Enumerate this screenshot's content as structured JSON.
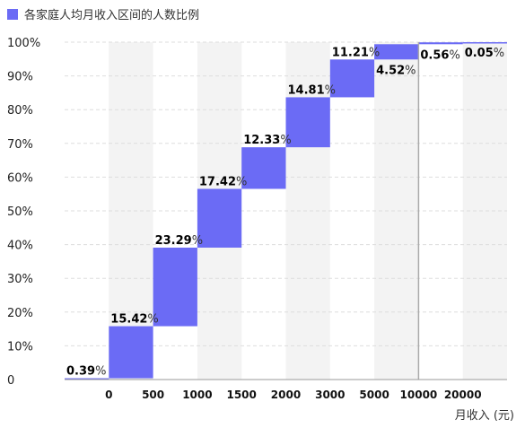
{
  "chart_data": {
    "type": "bar",
    "subtype": "waterfall",
    "series": [
      {
        "name": "各家庭人均月收入区间的人数比例",
        "values": [
          0.39,
          15.42,
          23.29,
          17.42,
          12.33,
          14.81,
          11.21,
          4.52,
          0.56,
          0.05
        ],
        "labels": [
          "0.39",
          "15.42",
          "23.29",
          "17.42",
          "12.33",
          "14.81",
          "11.21",
          "4.52",
          "0.56",
          "0.05"
        ]
      }
    ],
    "x_ticks": [
      "0",
      "500",
      "1000",
      "1500",
      "2000",
      "3000",
      "5000",
      "10000",
      "20000"
    ],
    "y_ticks": [
      "0",
      "10%",
      "20%",
      "30%",
      "40%",
      "50%",
      "60%",
      "70%",
      "80%",
      "90%",
      "100%"
    ],
    "ylim": [
      0,
      100
    ],
    "percent_sign": "%",
    "xlabel": "月收入 (元)",
    "ylabel": "",
    "title": "",
    "legend": {
      "position": "top-left"
    },
    "grid": true,
    "colors": {
      "bar": "#6b6bf5",
      "band": "#f3f3f3",
      "grid": "#dddddd",
      "axis": "#999999",
      "divider": "#aaaaaa"
    }
  }
}
